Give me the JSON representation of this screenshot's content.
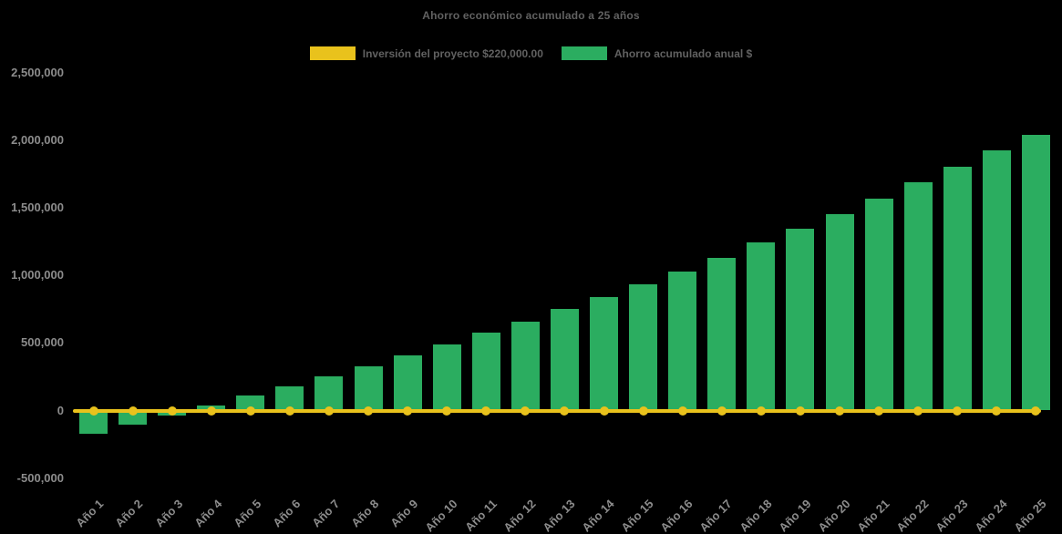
{
  "chart_data": {
    "type": "bar",
    "title": "Ahorro económico acumulado a 25 años",
    "background": "#000000",
    "legend_position": "top",
    "grid": false,
    "categories": [
      "Año 1",
      "Año 2",
      "Año 3",
      "Año 4",
      "Año 5",
      "Año 6",
      "Año 7",
      "Año 8",
      "Año 9",
      "Año 10",
      "Año 11",
      "Año 12",
      "Año 13",
      "Año 14",
      "Año 15",
      "Año 16",
      "Año 17",
      "Año 18",
      "Año 19",
      "Año 20",
      "Año 21",
      "Año 22",
      "Año 23",
      "Año 24",
      "Año 25"
    ],
    "series": [
      {
        "name": "Inversión del proyecto $220,000.00",
        "type": "line",
        "color": "#E9C21C",
        "marker": "circle",
        "investment_amount_label": "$220,000.00",
        "rendered_at_value": 0,
        "values": [
          0,
          0,
          0,
          0,
          0,
          0,
          0,
          0,
          0,
          0,
          0,
          0,
          0,
          0,
          0,
          0,
          0,
          0,
          0,
          0,
          0,
          0,
          0,
          0,
          0
        ]
      },
      {
        "name": "Ahorro acumulado anual $",
        "type": "bar",
        "color": "#2BAD60",
        "values": [
          -175000,
          -105000,
          -35000,
          40000,
          110000,
          180000,
          255000,
          330000,
          410000,
          490000,
          575000,
          660000,
          750000,
          840000,
          935000,
          1030000,
          1130000,
          1240000,
          1345000,
          1455000,
          1565000,
          1685000,
          1805000,
          1925000,
          2040000
        ]
      }
    ],
    "xlabel": "",
    "ylabel": "",
    "ylim": [
      -500000,
      2500000
    ],
    "y_ticks": [
      {
        "value": 2500000,
        "label": "2,500,000"
      },
      {
        "value": 2000000,
        "label": "2,000,000"
      },
      {
        "value": 1500000,
        "label": "1,500,000"
      },
      {
        "value": 1000000,
        "label": "1,000,000"
      },
      {
        "value": 500000,
        "label": "500,000"
      },
      {
        "value": 0,
        "label": "0"
      },
      {
        "value": -500000,
        "label": "-500,000"
      }
    ],
    "text_colors": {
      "title": "#616161",
      "axis_ticks": "#8c8c8c"
    }
  }
}
